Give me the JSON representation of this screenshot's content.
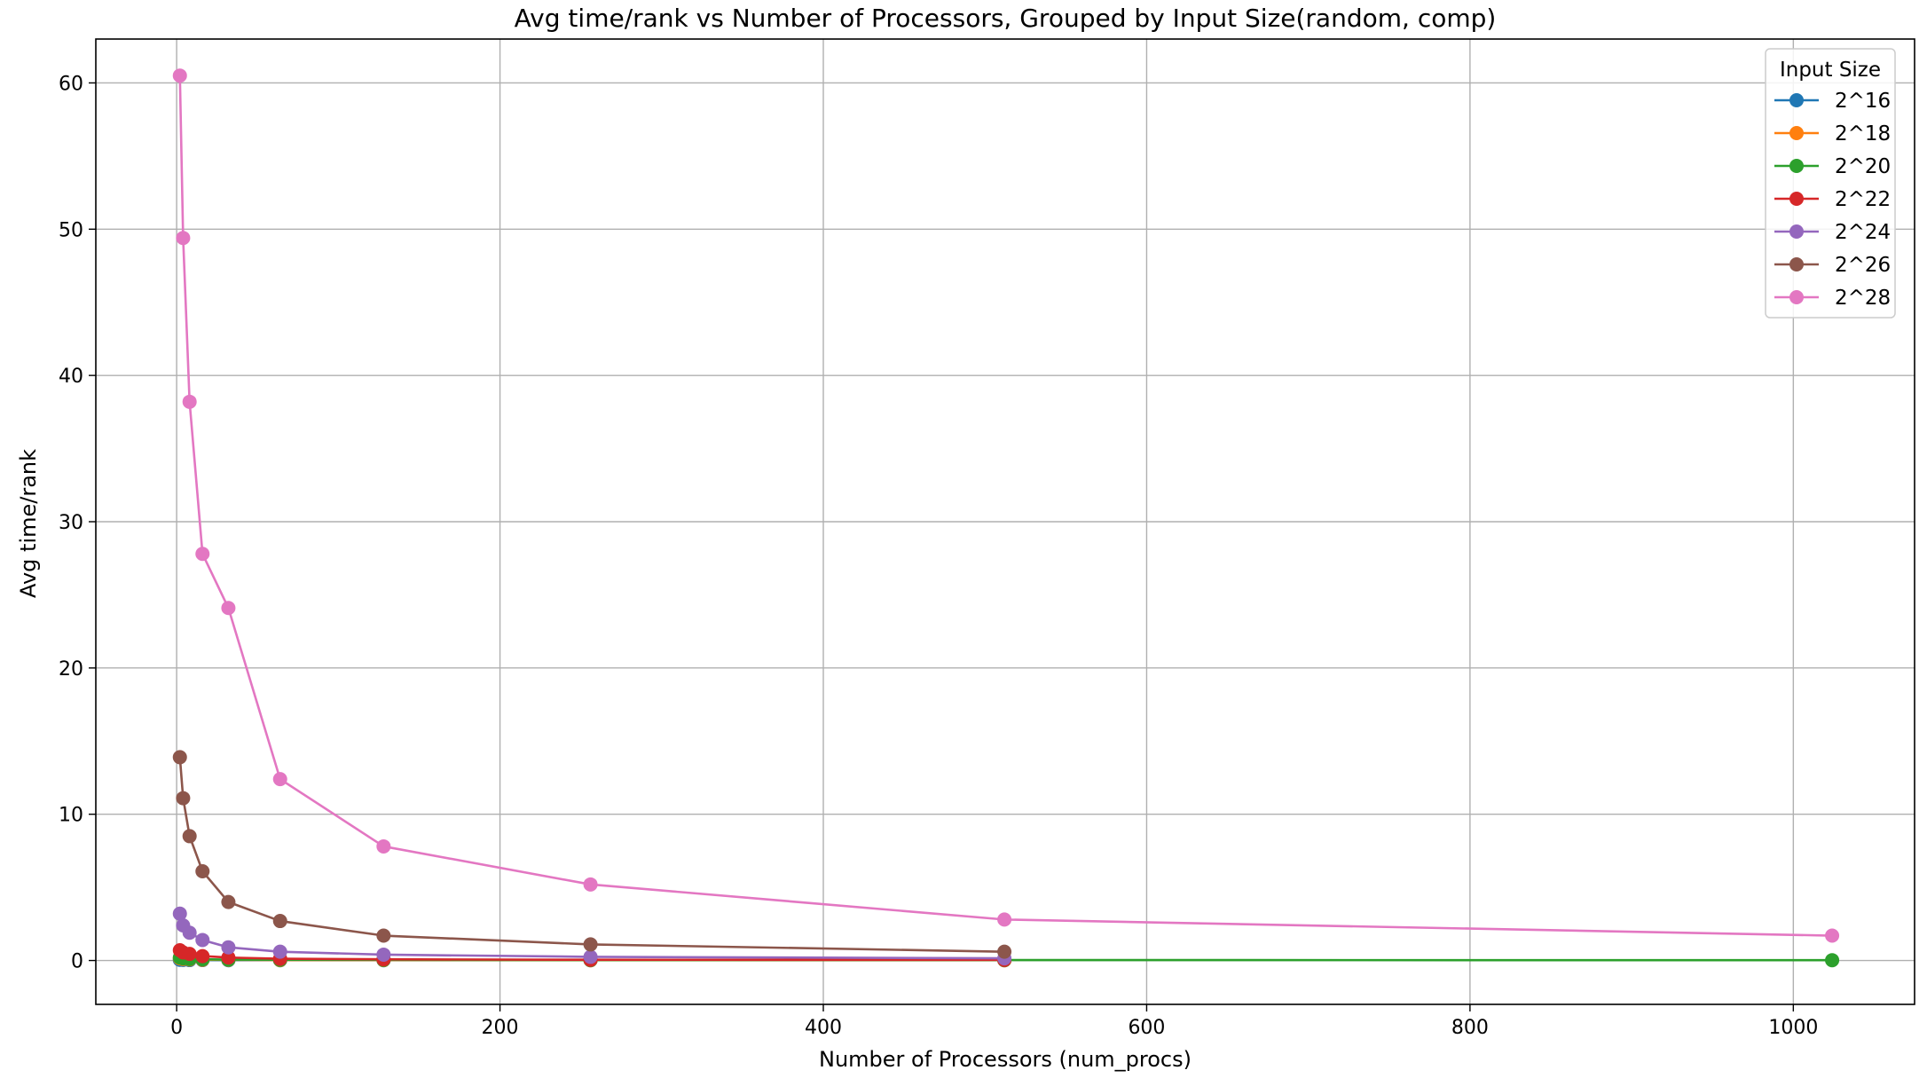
{
  "chart_data": {
    "type": "line",
    "title": "Avg time/rank vs Number of Processors, Grouped by Input Size(random, comp)",
    "xlabel": "Number of Processors (num_procs)",
    "ylabel": "Avg time/rank",
    "xlim": [
      -50,
      1075
    ],
    "ylim": [
      -3,
      63
    ],
    "xticks": [
      0,
      200,
      400,
      600,
      800,
      1000
    ],
    "yticks": [
      0,
      10,
      20,
      30,
      40,
      50,
      60
    ],
    "grid": true,
    "legend": {
      "title": "Input Size",
      "placement": "top-right"
    },
    "series": [
      {
        "name": "2^16",
        "color": "#1f77b4",
        "x": [
          2,
          4,
          8,
          16,
          32,
          64,
          128,
          256,
          512
        ],
        "y": [
          0.05,
          0.04,
          0.03,
          0.03,
          0.02,
          0.02,
          0.02,
          0.02,
          0.02
        ]
      },
      {
        "name": "2^18",
        "color": "#ff7f0e",
        "x": [
          2,
          4,
          8,
          16,
          32,
          64,
          128,
          256,
          512
        ],
        "y": [
          0.15,
          0.1,
          0.07,
          0.05,
          0.04,
          0.03,
          0.03,
          0.02,
          0.02
        ]
      },
      {
        "name": "2^20",
        "color": "#2ca02c",
        "x": [
          2,
          4,
          8,
          16,
          32,
          64,
          128,
          256,
          512,
          1024
        ],
        "y": [
          0.2,
          0.15,
          0.1,
          0.08,
          0.06,
          0.05,
          0.04,
          0.03,
          0.03,
          0.02
        ]
      },
      {
        "name": "2^22",
        "color": "#d62728",
        "x": [
          2,
          4,
          8,
          16,
          32,
          64,
          128,
          256,
          512
        ],
        "y": [
          0.7,
          0.55,
          0.45,
          0.3,
          0.2,
          0.12,
          0.08,
          0.05,
          0.04
        ]
      },
      {
        "name": "2^24",
        "color": "#9467bd",
        "x": [
          2,
          4,
          8,
          16,
          32,
          64,
          128,
          256,
          512
        ],
        "y": [
          3.2,
          2.4,
          1.9,
          1.4,
          0.9,
          0.6,
          0.4,
          0.25,
          0.15
        ]
      },
      {
        "name": "2^26",
        "color": "#8c564b",
        "x": [
          2,
          4,
          8,
          16,
          32,
          64,
          128,
          256,
          512
        ],
        "y": [
          13.9,
          11.1,
          8.5,
          6.1,
          4.0,
          2.7,
          1.7,
          1.1,
          0.6
        ]
      },
      {
        "name": "2^28",
        "color": "#e377c2",
        "x": [
          2,
          4,
          8,
          16,
          32,
          64,
          128,
          256,
          512,
          1024
        ],
        "y": [
          60.5,
          49.4,
          38.2,
          27.8,
          24.1,
          12.4,
          7.8,
          5.2,
          2.8,
          1.7
        ]
      }
    ]
  }
}
